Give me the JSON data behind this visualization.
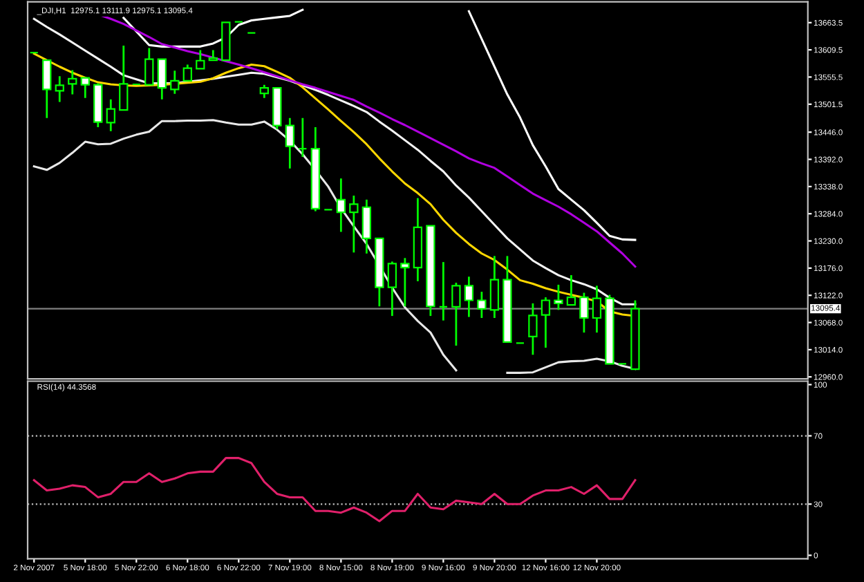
{
  "chart_data": [
    {
      "type": "candlestick",
      "title": "_DJI,H1  12975.1 13111.9 12975.1 13095.4",
      "categories": [
        null,
        null,
        null,
        null,
        null,
        null,
        null,
        null,
        null,
        null,
        null,
        null,
        null,
        null,
        null,
        null,
        null,
        null,
        null,
        null,
        null,
        null,
        null,
        null,
        null,
        null,
        null,
        null,
        null,
        null,
        null,
        null,
        null,
        null,
        null,
        null,
        null,
        null,
        null,
        null,
        null,
        null,
        null,
        null,
        null,
        null,
        null,
        null,
        null,
        null,
        null,
        null,
        null,
        null,
        null,
        null,
        null,
        null,
        null,
        null,
        null
      ],
      "series": [
        {
          "type": "candlestick",
          "color": "#00ff00",
          "ohlc": [
            [
              13604,
              13604,
              13604,
              13604
            ],
            [
              13589,
              13589,
              13474,
              13531
            ],
            [
              13528,
              13557,
              13506,
              13539
            ],
            [
              13542,
              13569,
              13521,
              13552
            ],
            [
              13554,
              13554,
              13514,
              13540
            ],
            [
              13540,
              13543,
              13456,
              13466
            ],
            [
              13465,
              13511,
              13448,
              13492
            ],
            [
              13490,
              13618,
              13490,
              13542
            ],
            [
              13541,
              13541,
              13541,
              13541
            ],
            [
              13540,
              13613,
              13540,
              13591
            ],
            [
              13591,
              13591,
              13511,
              13534
            ],
            [
              13531,
              13568,
              13522,
              13548
            ],
            [
              13548,
              13580,
              13548,
              13573
            ],
            [
              13572,
              13609,
              13572,
              13588
            ],
            [
              13589,
              13609,
              13589,
              13593
            ],
            [
              13589,
              13664,
              13589,
              13664
            ],
            [
              13665,
              13665,
              13665,
              13665
            ],
            [
              13643,
              13643,
              13643,
              13643
            ],
            [
              13523,
              13540,
              13514,
              13534
            ],
            [
              13534,
              13534,
              13452,
              13459
            ],
            [
              13459,
              13474,
              13374,
              13418
            ],
            [
              13413,
              13474,
              13397,
              13413
            ],
            [
              13413,
              13456,
              13289,
              13294
            ],
            [
              13292,
              13292,
              13292,
              13292
            ],
            [
              13312,
              13354,
              13248,
              13287
            ],
            [
              13287,
              13320,
              13207,
              13303
            ],
            [
              13297,
              13312,
              13205,
              13235
            ],
            [
              13235,
              13235,
              13100,
              13138
            ],
            [
              13138,
              13189,
              13081,
              13185
            ],
            [
              13185,
              13196,
              13100,
              13177
            ],
            [
              13177,
              13315,
              13150,
              13257
            ],
            [
              13260,
              13260,
              13081,
              13100
            ],
            [
              13099,
              13188,
              13072,
              13099
            ],
            [
              13099,
              13147,
              13022,
              13141
            ],
            [
              13141,
              13159,
              13079,
              13112
            ],
            [
              13112,
              13129,
              13077,
              13095
            ],
            [
              13093,
              13200,
              13077,
              13153
            ],
            [
              13153,
              13200,
              13029,
              13029
            ],
            [
              13027,
              13027,
              13027,
              13027
            ],
            [
              13040,
              13106,
              13004,
              13082
            ],
            [
              13083,
              13118,
              13018,
              13112
            ],
            [
              13112,
              13143,
              13093,
              13106
            ],
            [
              13103,
              13162,
              13103,
              13118
            ],
            [
              13118,
              13127,
              13048,
              13077
            ],
            [
              13077,
              13141,
              13048,
              13116
            ],
            [
              13116,
              13123,
              12986,
              12986
            ],
            [
              12986,
              12986,
              12986,
              12986
            ],
            [
              12975.1,
              13111.9,
              12975.1,
              13095.4
            ],
            null,
            null,
            null,
            null,
            null,
            null,
            null,
            null,
            null,
            null,
            null,
            null,
            null
          ],
          "colors": [
            "#00ff00",
            "#ffffff",
            "#000000",
            "#000000",
            "#ffffff",
            "#ffffff",
            "#000000",
            "#000000",
            "#00ff00",
            "#000000",
            "#ffffff",
            "#000000",
            "#000000",
            "#000000",
            "#000000",
            "#000000",
            "#00ff00",
            "#00ff00",
            "#000000",
            "#ffffff",
            "#ffffff",
            "#00ff00",
            "#ffffff",
            "#00ff00",
            "#ffffff",
            "#000000",
            "#ffffff",
            "#ffffff",
            "#000000",
            "#ffffff",
            "#000000",
            "#ffffff",
            "#00ff00",
            "#000000",
            "#ffffff",
            "#ffffff",
            "#000000",
            "#ffffff",
            "#00ff00",
            "#000000",
            "#000000",
            "#ffffff",
            "#000000",
            "#ffffff",
            "#000000",
            "#ffffff",
            "#00ff00",
            "#000000",
            null,
            null,
            null,
            null,
            null,
            null,
            null,
            null,
            null,
            null,
            null,
            null,
            null
          ]
        },
        {
          "type": "line",
          "color": "#ffffff",
          "values": [
            null,
            null,
            null,
            null,
            null,
            null,
            null,
            13673,
            13646,
            13619,
            13616,
            13616,
            13616,
            13616,
            13622,
            13634,
            13659,
            13668,
            13671,
            13674,
            13677,
            13689,
            null,
            null,
            null,
            null,
            null,
            null,
            null,
            null,
            null,
            null,
            null,
            null,
            13686,
            13631,
            13576,
            13521,
            13475,
            13420,
            13378,
            13333,
            13312,
            13291,
            13266,
            13240,
            13233,
            13232,
            null,
            null,
            null,
            null,
            null,
            null,
            null,
            null,
            null,
            null,
            null,
            null,
            null
          ]
        },
        {
          "type": "line",
          "color": "#f4f4f4",
          "values": [
            13671,
            13655,
            13640,
            13624,
            13608,
            13592,
            13576,
            13559,
            13551,
            13543,
            13543,
            13543,
            13546,
            13549,
            13552,
            13556,
            13560,
            13564,
            13562,
            13555,
            13548,
            13539,
            13530,
            13520,
            13509,
            13498,
            13486,
            13467,
            13449,
            13430,
            13411,
            13389,
            13368,
            13340,
            13316,
            13289,
            13262,
            13235,
            13213,
            13191,
            13176,
            13162,
            13152,
            13144,
            13134,
            13117,
            13104,
            13104,
            null,
            null,
            null,
            null,
            null,
            null,
            null,
            null,
            null,
            null,
            null,
            null,
            null
          ]
        },
        {
          "type": "line",
          "color": "#e8e8e8",
          "values": [
            13378,
            13371,
            13385,
            13405,
            13427,
            13422,
            13423,
            13433,
            13441,
            13447,
            13468,
            13468,
            13469,
            13469,
            13470,
            13465,
            13461,
            13461,
            13467,
            13451,
            13429,
            13402,
            13371,
            13338,
            13295,
            13259,
            13224,
            13181,
            13137,
            13098,
            13071,
            13048,
            13004,
            12973,
            null,
            null,
            null,
            12968,
            12968,
            12969,
            12979,
            12989,
            12991,
            12992,
            12996,
            12991,
            12982,
            12976,
            null,
            null,
            null,
            null,
            null,
            null,
            null,
            null,
            null,
            null,
            null,
            null,
            null
          ]
        },
        {
          "type": "line",
          "color": "#ffd700",
          "values": [
            13602,
            13589,
            13576,
            13564,
            13554,
            13545,
            13541,
            13539,
            13538,
            13539,
            13540,
            13542,
            13544,
            13546,
            13553,
            13564,
            13573,
            13580,
            13577,
            13566,
            13554,
            13535,
            13513,
            13491,
            13468,
            13446,
            13422,
            13394,
            13368,
            13344,
            13325,
            13303,
            13272,
            13246,
            13224,
            13205,
            13192,
            13173,
            13152,
            13145,
            13136,
            13129,
            13123,
            13117,
            13110,
            13090,
            13084,
            13081,
            null,
            null,
            null,
            null,
            null,
            null,
            null,
            null,
            null,
            null,
            null,
            null,
            null
          ]
        },
        {
          "type": "line",
          "color": "#b000e0",
          "values": [
            null,
            null,
            null,
            null,
            null,
            13680,
            13671,
            13661,
            13648,
            13635,
            13621,
            13614,
            13607,
            13601,
            13594,
            13587,
            13580,
            13573,
            13565,
            13557,
            13549,
            13541,
            13534,
            13526,
            13518,
            13510,
            13497,
            13485,
            13472,
            13460,
            13447,
            13434,
            13421,
            13408,
            13394,
            13384,
            13375,
            13358,
            13341,
            13324,
            13311,
            13298,
            13283,
            13266,
            13249,
            13227,
            13205,
            13179,
            null,
            null,
            null,
            null,
            null,
            null,
            null,
            null,
            null,
            null,
            null,
            null,
            null
          ]
        }
      ],
      "ylim": [
        12956,
        13705
      ],
      "yticks": [
        {
          "value": 13663.5,
          "label": "13663.5"
        },
        {
          "value": 13609.5,
          "label": "13609.5"
        },
        {
          "value": 13555.5,
          "label": "13555.5"
        },
        {
          "value": 13501.5,
          "label": "13501.5"
        },
        {
          "value": 13446,
          "label": "13446.0"
        },
        {
          "value": 13392,
          "label": "13392.0"
        },
        {
          "value": 13338,
          "label": "13338.0"
        },
        {
          "value": 13284,
          "label": "13284.0"
        },
        {
          "value": 13230,
          "label": "13230.0"
        },
        {
          "value": 13176,
          "label": "13176.0"
        },
        {
          "value": 13122,
          "label": "13122.0"
        },
        {
          "value": 13068,
          "label": "13068.0"
        },
        {
          "value": 13014,
          "label": "13014.0"
        },
        {
          "value": 12960,
          "label": "12960.0"
        }
      ],
      "tick_labels": "y",
      "ref_lines": [
        {
          "axis": "y",
          "value": 13095.4,
          "label": "13095.4",
          "color": "#808080",
          "line_style": "solid"
        }
      ],
      "grid": false,
      "legend": false
    },
    {
      "type": "line",
      "title": "RSI(14) 44.3568",
      "categories": [
        "2 Nov 2007",
        null,
        null,
        null,
        "5 Nov 18:00",
        null,
        null,
        null,
        "5 Nov 22:00",
        null,
        null,
        null,
        "6 Nov 18:00",
        null,
        null,
        null,
        "6 Nov 22:00",
        null,
        null,
        null,
        "7 Nov 19:00",
        null,
        null,
        null,
        "8 Nov 15:00",
        null,
        null,
        null,
        "8 Nov 19:00",
        null,
        null,
        null,
        "9 Nov 16:00",
        null,
        null,
        null,
        "9 Nov 20:00",
        null,
        null,
        null,
        "12 Nov 16:00",
        null,
        null,
        null,
        "12 Nov 20:00",
        null,
        null,
        null,
        null,
        null,
        null,
        null,
        null,
        null,
        null,
        null,
        null,
        null,
        null,
        null,
        null
      ],
      "series": [
        {
          "color": "#e0206a",
          "values": [
            44,
            38,
            39,
            41,
            40,
            34,
            36,
            43,
            43,
            48,
            43,
            45,
            48,
            49,
            49,
            57,
            57,
            54,
            43,
            36,
            34,
            34,
            26,
            26,
            25,
            28,
            25,
            20,
            26,
            26,
            36,
            28,
            27,
            32,
            31,
            30,
            36,
            30,
            30,
            35,
            38,
            38,
            40,
            36,
            41,
            33,
            33,
            44,
            null,
            null,
            null,
            null,
            null,
            null,
            null,
            null,
            null,
            null,
            null,
            null,
            null
          ]
        }
      ],
      "ylim": [
        -2,
        102
      ],
      "yticks": [
        0,
        30,
        70,
        100
      ],
      "ref_lines": [
        {
          "axis": "y",
          "value": 30,
          "color": "#c0c0c0",
          "line_style": "dotted"
        },
        {
          "axis": "y",
          "value": 70,
          "color": "#c0c0c0",
          "line_style": "dotted"
        }
      ],
      "grid": false,
      "legend": false
    }
  ]
}
